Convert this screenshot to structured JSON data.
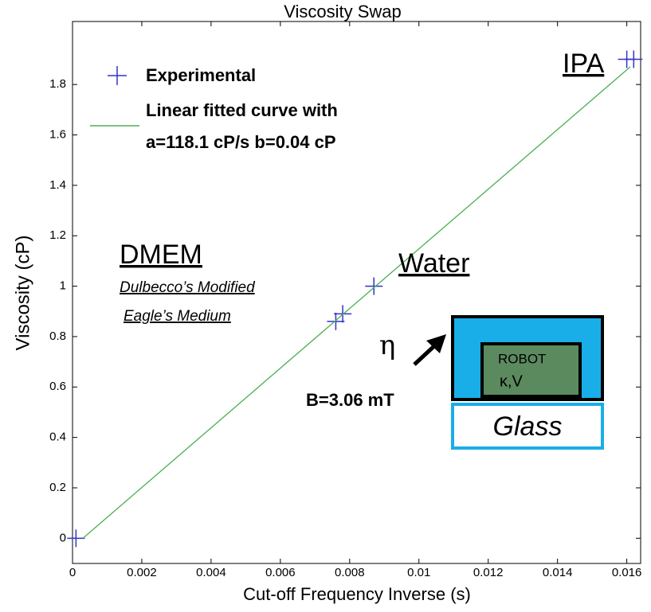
{
  "chart_data": {
    "type": "scatter",
    "title": "Viscosity Swap",
    "x_label": "Cut-off Frequency Inverse (s)",
    "y_label": "Viscosity  (cP)",
    "xlim": [
      0,
      0.0164
    ],
    "ylim": [
      -0.1,
      2.05
    ],
    "xticks": [
      0,
      0.002,
      0.004,
      0.006,
      0.008,
      0.01,
      0.012,
      0.014,
      0.016
    ],
    "yticks": [
      0,
      0.2,
      0.4,
      0.6,
      0.8,
      1,
      1.2,
      1.4,
      1.6,
      1.8
    ],
    "legend": "top-left",
    "series": [
      {
        "name": "Experimental",
        "color": "#3333cc",
        "mode": "markers",
        "x": [
          0.0001,
          0.0076,
          0.0078,
          0.0087,
          0.016,
          0.0162
        ],
        "values": [
          0,
          0.86,
          0.89,
          1.0,
          1.9,
          1.9
        ]
      },
      {
        "name": "Linear fitted curve with",
        "color": "#4caf50",
        "mode": "line",
        "x": [
          0.0003,
          0.0161
        ],
        "values": [
          0,
          1.87
        ]
      }
    ],
    "legend_note": "a=118.1 cP/s b=0.04 cP",
    "annotations": {
      "dmem": "DMEM",
      "dmem_1": "Dulbecco’s Modified",
      "dmem_2": "Eagle’s Medium",
      "water": "Water",
      "ipa": "IPA",
      "eta": "η",
      "field": "B=3.06 mT",
      "robot": "ROBOT",
      "robot_params": "κ,V",
      "glass": "Glass"
    }
  }
}
